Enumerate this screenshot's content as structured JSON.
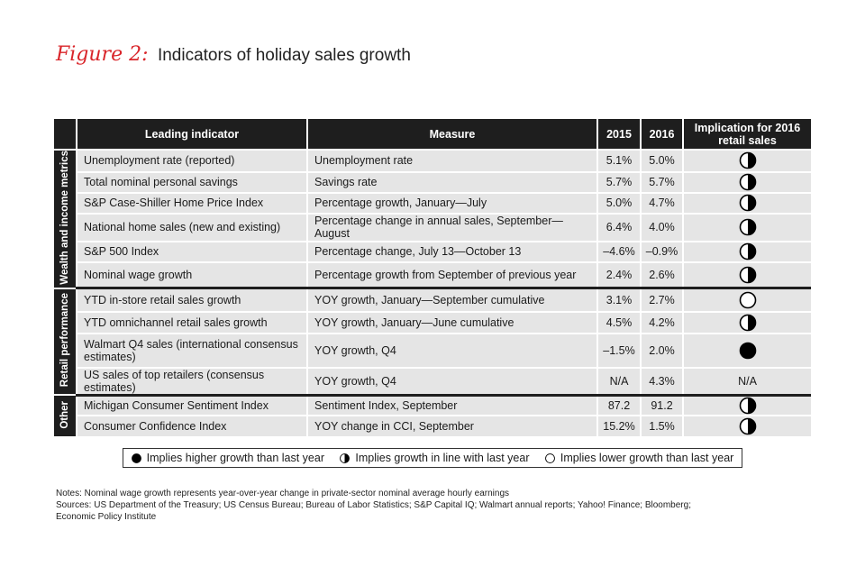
{
  "figure": {
    "label": "Figure 2:",
    "title": "Indicators of holiday sales growth"
  },
  "table": {
    "headers": {
      "leading": "Leading indicator",
      "measure": "Measure",
      "y2015": "2015",
      "y2016": "2016",
      "implication": "Implication for 2016 retail sales"
    },
    "groups": [
      {
        "label": "Wealth and income metrics",
        "rows": [
          {
            "indicator": "Unemployment rate (reported)",
            "measure": "Unemployment rate",
            "v2015": "5.1%",
            "v2016": "5.0%",
            "implication": "half"
          },
          {
            "indicator": "Total nominal personal savings",
            "measure": "Savings rate",
            "v2015": "5.7%",
            "v2016": "5.7%",
            "implication": "half"
          },
          {
            "indicator": "S&P Case-Shiller Home Price Index",
            "measure": "Percentage growth, January—July",
            "v2015": "5.0%",
            "v2016": "4.7%",
            "implication": "half"
          },
          {
            "indicator": "National home sales (new and existing)",
            "measure": "Percentage change in annual sales, September—August",
            "v2015": "6.4%",
            "v2016": "4.0%",
            "implication": "half"
          },
          {
            "indicator": "S&P 500 Index",
            "measure": "Percentage change, July 13—October 13",
            "v2015": "–4.6%",
            "v2016": "–0.9%",
            "implication": "half"
          },
          {
            "indicator": "Nominal wage growth",
            "measure": "Percentage growth from September of previous year",
            "v2015": "2.4%",
            "v2016": "2.6%",
            "implication": "half"
          }
        ]
      },
      {
        "label": "Retail performance",
        "rows": [
          {
            "indicator": "YTD in-store retail sales growth",
            "measure": "YOY growth, January—September cumulative",
            "v2015": "3.1%",
            "v2016": "2.7%",
            "implication": "empty"
          },
          {
            "indicator": "YTD omnichannel retail sales growth",
            "measure": "YOY growth, January—June cumulative",
            "v2015": "4.5%",
            "v2016": "4.2%",
            "implication": "half"
          },
          {
            "indicator": "Walmart Q4 sales (international consensus estimates)",
            "measure": "YOY growth, Q4",
            "v2015": "–1.5%",
            "v2016": "2.0%",
            "implication": "full"
          },
          {
            "indicator": "US sales of top retailers (consensus estimates)",
            "measure": "YOY growth, Q4",
            "v2015": "N/A",
            "v2016": "4.3%",
            "implication": "N/A"
          }
        ]
      },
      {
        "label": "Other",
        "rows": [
          {
            "indicator": "Michigan Consumer Sentiment Index",
            "measure": "Sentiment Index, September",
            "v2015": "87.2",
            "v2016": "91.2",
            "implication": "half"
          },
          {
            "indicator": "Consumer Confidence Index",
            "measure": "YOY change in CCI, September",
            "v2015": "15.2%",
            "v2016": "1.5%",
            "implication": "half"
          }
        ]
      }
    ]
  },
  "legend": {
    "full": "Implies higher growth than last year",
    "half": "Implies growth in line with last year",
    "empty": "Implies lower growth than last year"
  },
  "notes": {
    "line1": "Notes: Nominal wage growth represents year-over-year change in private-sector nominal average hourly earnings",
    "line2": "Sources: US Department of the Treasury; US Census Bureau; Bureau of Labor Statistics; S&P Capital IQ; Walmart annual reports; Yahoo! Finance; Bloomberg;",
    "line3": "Economic Policy Institute"
  }
}
